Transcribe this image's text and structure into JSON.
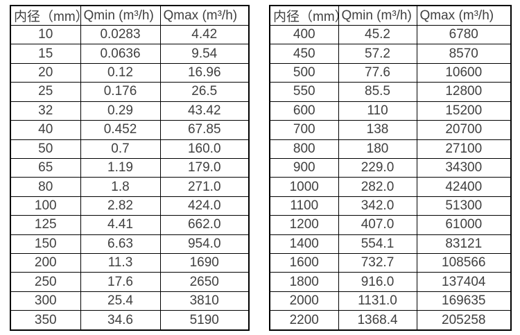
{
  "page": {
    "background": "#ffffff",
    "border_color": "#000000",
    "text_color": "#404040"
  },
  "tables": [
    {
      "id": "small-diameter-flow-table",
      "headers": [
        "内径（mm）",
        "Qmin (m³/h)",
        "Qmax (m³/h)"
      ],
      "rows": [
        [
          "10",
          "0.0283",
          "4.42"
        ],
        [
          "15",
          "0.0636",
          "9.54"
        ],
        [
          "20",
          "0.12",
          "16.96"
        ],
        [
          "25",
          "0.176",
          "26.5"
        ],
        [
          "32",
          "0.29",
          "43.42"
        ],
        [
          "40",
          "0.452",
          "67.85"
        ],
        [
          "50",
          "0.7",
          "160.0"
        ],
        [
          "65",
          "1.19",
          "179.0"
        ],
        [
          "80",
          "1.8",
          "271.0"
        ],
        [
          "100",
          "2.82",
          "424.0"
        ],
        [
          "125",
          "4.41",
          "662.0"
        ],
        [
          "150",
          "6.63",
          "954.0"
        ],
        [
          "200",
          "11.3",
          "1690"
        ],
        [
          "250",
          "17.6",
          "2650"
        ],
        [
          "300",
          "25.4",
          "3810"
        ],
        [
          "350",
          "34.6",
          "5190"
        ]
      ]
    },
    {
      "id": "large-diameter-flow-table",
      "headers": [
        "内径（mm）",
        "Qmin (m³/h)",
        "Qmax (m³/h)"
      ],
      "rows": [
        [
          "400",
          "45.2",
          "6780"
        ],
        [
          "450",
          "57.2",
          "8570"
        ],
        [
          "500",
          "77.6",
          "10600"
        ],
        [
          "550",
          "85.5",
          "12800"
        ],
        [
          "600",
          "110",
          "15200"
        ],
        [
          "700",
          "138",
          "20700"
        ],
        [
          "800",
          "180",
          "27100"
        ],
        [
          "900",
          "229.0",
          "34300"
        ],
        [
          "1000",
          "282.0",
          "42400"
        ],
        [
          "1100",
          "342.0",
          "51300"
        ],
        [
          "1200",
          "407.0",
          "61000"
        ],
        [
          "1400",
          "554.1",
          "83121"
        ],
        [
          "1600",
          "732.7",
          "108566"
        ],
        [
          "1800",
          "916.0",
          "137404"
        ],
        [
          "2000",
          "1131.0",
          "169635"
        ],
        [
          "2200",
          "1368.4",
          "205258"
        ]
      ]
    }
  ]
}
